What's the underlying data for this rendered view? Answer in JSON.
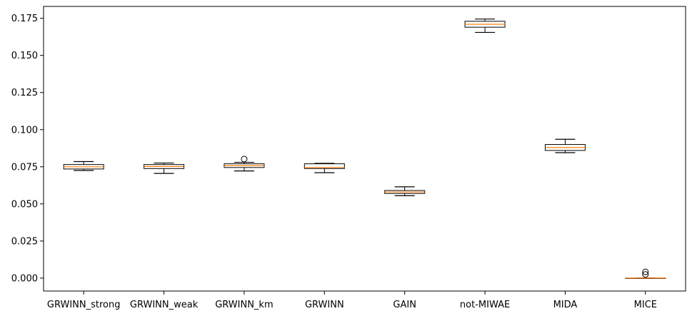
{
  "chart_data": {
    "type": "boxplot",
    "title": "",
    "xlabel": "",
    "ylabel": "",
    "ylim": [
      -0.0087,
      0.183
    ],
    "yticks": [
      0.0,
      0.025,
      0.05,
      0.075,
      0.1,
      0.125,
      0.15,
      0.175
    ],
    "ytick_labels": [
      "0.000",
      "0.025",
      "0.050",
      "0.075",
      "0.100",
      "0.125",
      "0.150",
      "0.175"
    ],
    "grid": false,
    "categories": [
      "GRWINN_strong",
      "GRWINN_weak",
      "GRWINN_km",
      "GRWINN",
      "GAIN",
      "not-MIWAE",
      "MIDA",
      "MICE"
    ],
    "boxes": [
      {
        "whisker_low": 0.0725,
        "q1": 0.0735,
        "median": 0.075,
        "q3": 0.0765,
        "whisker_high": 0.0785,
        "outliers": []
      },
      {
        "whisker_low": 0.0705,
        "q1": 0.0738,
        "median": 0.0752,
        "q3": 0.0765,
        "whisker_high": 0.0775,
        "outliers": []
      },
      {
        "whisker_low": 0.0722,
        "q1": 0.0745,
        "median": 0.0758,
        "q3": 0.077,
        "whisker_high": 0.078,
        "outliers": [
          0.0802
        ]
      },
      {
        "whisker_low": 0.071,
        "q1": 0.0738,
        "median": 0.0745,
        "q3": 0.077,
        "whisker_high": 0.0773,
        "outliers": []
      },
      {
        "whisker_low": 0.0555,
        "q1": 0.057,
        "median": 0.058,
        "q3": 0.059,
        "whisker_high": 0.0615,
        "outliers": []
      },
      {
        "whisker_low": 0.1655,
        "q1": 0.169,
        "median": 0.171,
        "q3": 0.173,
        "whisker_high": 0.1745,
        "outliers": []
      },
      {
        "whisker_low": 0.0845,
        "q1": 0.086,
        "median": 0.088,
        "q3": 0.09,
        "whisker_high": 0.0935,
        "outliers": []
      },
      {
        "whisker_low": 0.0,
        "q1": 0.0,
        "median": 0.0,
        "q3": 0.0,
        "whisker_high": 0.0,
        "outliers": [
          0.0025,
          0.0042
        ]
      }
    ],
    "box_edge_color": "#000000",
    "box_fill_color": "#ffffff",
    "median_color": "#ff7f0e",
    "flier_color": "#000000"
  }
}
